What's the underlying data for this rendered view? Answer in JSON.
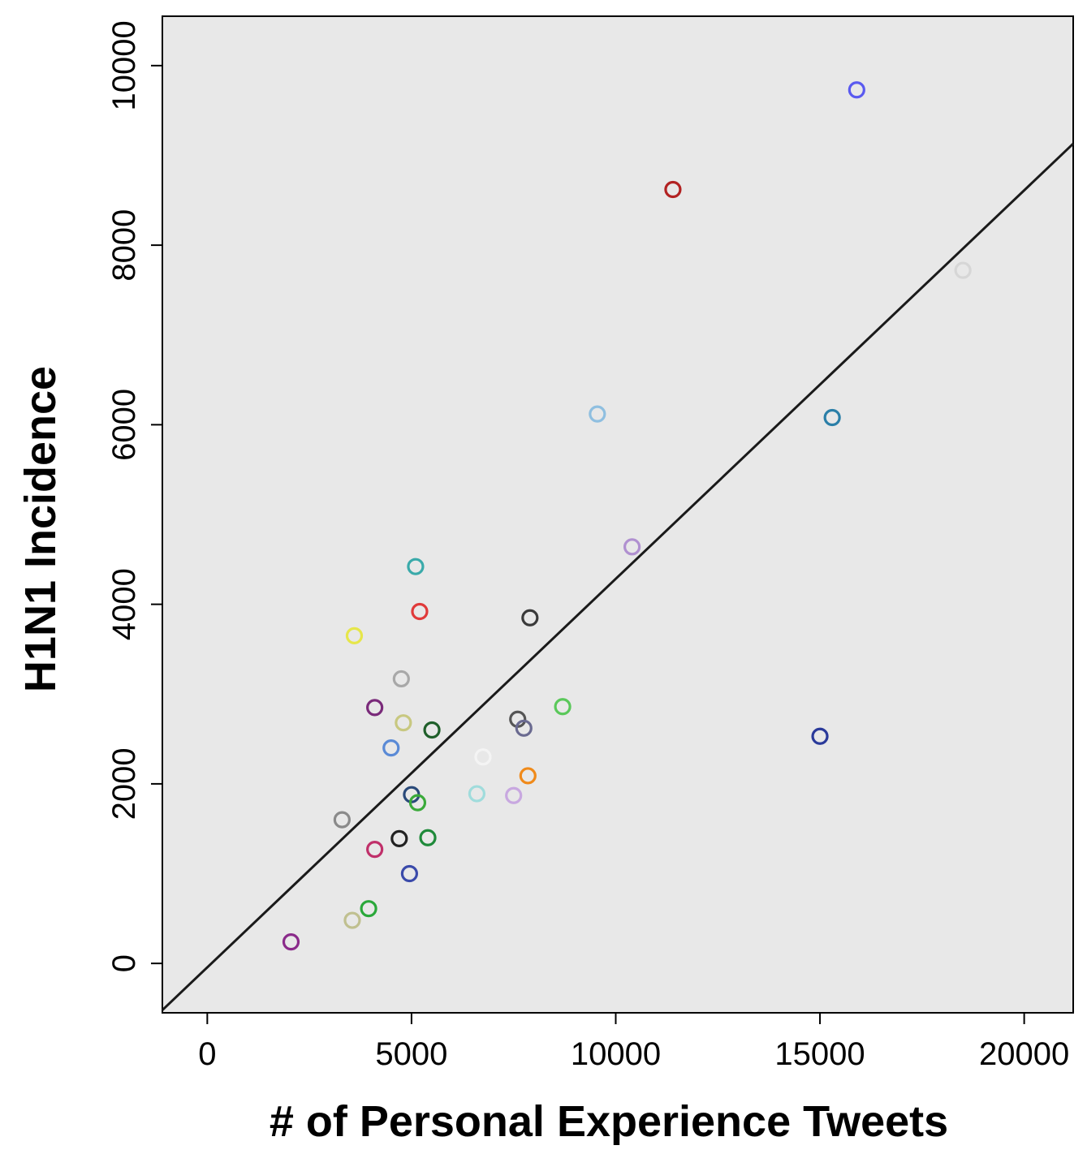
{
  "chart_data": {
    "type": "scatter",
    "title": "",
    "xlabel": "# of Personal Experience Tweets",
    "ylabel": "H1N1 Incidence",
    "xlim": [
      -1100,
      21200
    ],
    "ylim": [
      -550,
      10550
    ],
    "x_ticks": [
      0,
      5000,
      10000,
      15000,
      20000
    ],
    "y_ticks": [
      0,
      2000,
      4000,
      6000,
      8000,
      10000
    ],
    "x_tick_labels": [
      "0",
      "5000",
      "10000",
      "15000",
      "20000"
    ],
    "y_tick_labels": [
      "0",
      "2000",
      "4000",
      "6000",
      "8000",
      "10000"
    ],
    "grid": false,
    "legend": "none",
    "background_color": "#e8e8e8",
    "trend_line": {
      "points": [
        [
          -1100,
          -520
        ],
        [
          21200,
          9130
        ]
      ],
      "color": "#1a1a1a"
    },
    "points": [
      {
        "x": 15900,
        "y": 9730,
        "color": "#5a5af0"
      },
      {
        "x": 11400,
        "y": 8620,
        "color": "#b22222"
      },
      {
        "x": 18500,
        "y": 7720,
        "color": "#d6d6d6"
      },
      {
        "x": 9550,
        "y": 6120,
        "color": "#8fbfe0"
      },
      {
        "x": 15300,
        "y": 6080,
        "color": "#2b7fa8"
      },
      {
        "x": 10400,
        "y": 4640,
        "color": "#b090d0"
      },
      {
        "x": 5100,
        "y": 4420,
        "color": "#3aaaaa"
      },
      {
        "x": 5200,
        "y": 3920,
        "color": "#e03a3a"
      },
      {
        "x": 7900,
        "y": 3850,
        "color": "#3a3a3a"
      },
      {
        "x": 3600,
        "y": 3650,
        "color": "#e6e64a"
      },
      {
        "x": 4750,
        "y": 3170,
        "color": "#a8a8a8"
      },
      {
        "x": 4100,
        "y": 2850,
        "color": "#7a2a7a"
      },
      {
        "x": 8700,
        "y": 2860,
        "color": "#5ac85a"
      },
      {
        "x": 7600,
        "y": 2720,
        "color": "#555555"
      },
      {
        "x": 4800,
        "y": 2680,
        "color": "#c8c880"
      },
      {
        "x": 7750,
        "y": 2620,
        "color": "#6a6a90"
      },
      {
        "x": 5500,
        "y": 2600,
        "color": "#1f5f2a"
      },
      {
        "x": 15000,
        "y": 2530,
        "color": "#2a3a9a"
      },
      {
        "x": 4500,
        "y": 2400,
        "color": "#5a8ad6"
      },
      {
        "x": 6750,
        "y": 2300,
        "color": "#f4f4f4"
      },
      {
        "x": 7850,
        "y": 2090,
        "color": "#f08a1a"
      },
      {
        "x": 6600,
        "y": 1890,
        "color": "#a0dcdc"
      },
      {
        "x": 7500,
        "y": 1870,
        "color": "#c8a8e0"
      },
      {
        "x": 5000,
        "y": 1880,
        "color": "#2a4a7a"
      },
      {
        "x": 5150,
        "y": 1790,
        "color": "#3aaa3a"
      },
      {
        "x": 3300,
        "y": 1600,
        "color": "#8a8a8a"
      },
      {
        "x": 4700,
        "y": 1390,
        "color": "#222222"
      },
      {
        "x": 5400,
        "y": 1400,
        "color": "#1f8a3a"
      },
      {
        "x": 4100,
        "y": 1270,
        "color": "#c0306a"
      },
      {
        "x": 4950,
        "y": 1000,
        "color": "#3a4aaa"
      },
      {
        "x": 3950,
        "y": 610,
        "color": "#2aa83a"
      },
      {
        "x": 3550,
        "y": 480,
        "color": "#c0c090"
      },
      {
        "x": 2050,
        "y": 240,
        "color": "#8a2a8a"
      }
    ]
  }
}
